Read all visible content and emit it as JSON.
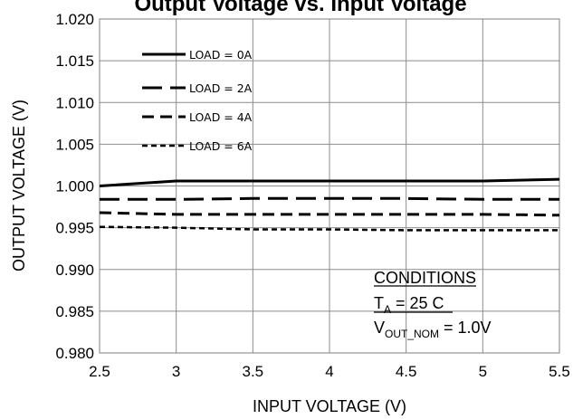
{
  "chart_data": {
    "type": "line",
    "title": "Output Voltage vs. Input Voltage",
    "xlabel": "INPUT VOLTAGE (V)",
    "ylabel": "OUTPUT  VOLTAGE (V)",
    "xlim": [
      2.5,
      5.5
    ],
    "ylim": [
      0.98,
      1.02
    ],
    "x_ticks": [
      "2.5",
      "3",
      "3.5",
      "4",
      "4.5",
      "5",
      "5.5"
    ],
    "y_ticks": [
      "0.980",
      "0.985",
      "0.990",
      "0.995",
      "1.000",
      "1.005",
      "1.010",
      "1.015",
      "1.020"
    ],
    "grid": true,
    "legend_position": "top-left",
    "series": [
      {
        "name": "LOAD = 0A",
        "style": "solid",
        "x": [
          2.5,
          3.0,
          3.5,
          4.0,
          4.5,
          5.0,
          5.5
        ],
        "y": [
          1.0,
          1.0006,
          1.0006,
          1.0006,
          1.0006,
          1.0006,
          1.0008
        ]
      },
      {
        "name": "LOAD = 2A",
        "style": "long-dash",
        "x": [
          2.5,
          3.0,
          3.5,
          4.0,
          4.5,
          5.0,
          5.5
        ],
        "y": [
          0.9984,
          0.9984,
          0.9985,
          0.9985,
          0.9985,
          0.9984,
          0.9984
        ]
      },
      {
        "name": "LOAD = 4A",
        "style": "dash",
        "x": [
          2.5,
          3.0,
          3.5,
          4.0,
          4.5,
          5.0,
          5.5
        ],
        "y": [
          0.9968,
          0.9966,
          0.9966,
          0.9966,
          0.9966,
          0.9966,
          0.9965
        ]
      },
      {
        "name": "LOAD = 6A",
        "style": "short-dash",
        "x": [
          2.5,
          3.0,
          3.5,
          4.0,
          4.5,
          5.0,
          5.5
        ],
        "y": [
          0.9951,
          0.995,
          0.9948,
          0.9948,
          0.9947,
          0.9947,
          0.9947
        ]
      }
    ],
    "conditions": {
      "heading": "CONDITIONS",
      "ta_var": "T",
      "ta_sub": "A",
      "ta_rest": " = 25  C",
      "vout_var": "V",
      "vout_sub": "OUT_NOM",
      "vout_rest": " = 1.0V"
    }
  }
}
